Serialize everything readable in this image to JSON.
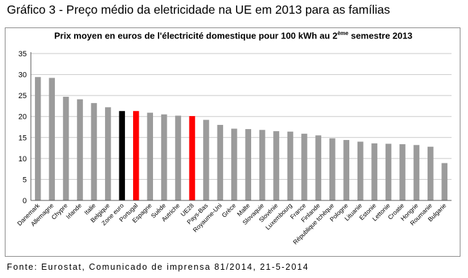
{
  "page": {
    "title": "Gráfico 3 - Preço médio da eletricidade na UE em 2013 para as famílias",
    "source": "Fonte: Eurostat, Comunicado de imprensa 81/2014, 21-5-2014"
  },
  "chart_data": {
    "type": "bar",
    "title": {
      "main": "Prix moyen en euros de l'électricité domestique pour 100 kWh au 2",
      "superscript": "ème",
      "tail": " semestre 2013"
    },
    "xlabel": "",
    "ylabel": "",
    "ylim": [
      0,
      35
    ],
    "yticks": [
      "0",
      "5",
      "10",
      "15",
      "20",
      "25",
      "30",
      "35"
    ],
    "grid": true,
    "legend": "none",
    "colors": {
      "default": "#9b9b9b",
      "euro_zone": "#000000",
      "highlight": "#ff0000"
    },
    "categories": [
      "Danemark",
      "Allemagne",
      "Chypre",
      "Irlande",
      "Italie",
      "Belgique",
      "Zone euro",
      "Portugal",
      "Espagne",
      "Suède",
      "Autriche",
      "UE28",
      "Pays-Bas",
      "Royaume-Uni",
      "Grèce",
      "Malte",
      "Slovaquie",
      "Slovénie",
      "Luxembourg",
      "France",
      "Finlande",
      "République tchèque",
      "Pologne",
      "Lituanie",
      "Estonie",
      "Lettonie",
      "Croatie",
      "Hongrie",
      "Roumanie",
      "Bulgarie"
    ],
    "values": [
      29.4,
      29.2,
      24.7,
      24.1,
      23.2,
      22.2,
      21.3,
      21.3,
      20.9,
      20.5,
      20.2,
      20.1,
      19.2,
      18.0,
      17.1,
      17.0,
      16.8,
      16.5,
      16.4,
      15.9,
      15.5,
      14.8,
      14.4,
      14.0,
      13.6,
      13.5,
      13.4,
      13.2,
      12.8,
      8.9
    ],
    "bar_colors": [
      "#9b9b9b",
      "#9b9b9b",
      "#9b9b9b",
      "#9b9b9b",
      "#9b9b9b",
      "#9b9b9b",
      "#000000",
      "#ff0000",
      "#9b9b9b",
      "#9b9b9b",
      "#9b9b9b",
      "#ff0000",
      "#9b9b9b",
      "#9b9b9b",
      "#9b9b9b",
      "#9b9b9b",
      "#9b9b9b",
      "#9b9b9b",
      "#9b9b9b",
      "#9b9b9b",
      "#9b9b9b",
      "#9b9b9b",
      "#9b9b9b",
      "#9b9b9b",
      "#9b9b9b",
      "#9b9b9b",
      "#9b9b9b",
      "#9b9b9b",
      "#9b9b9b",
      "#9b9b9b"
    ]
  }
}
